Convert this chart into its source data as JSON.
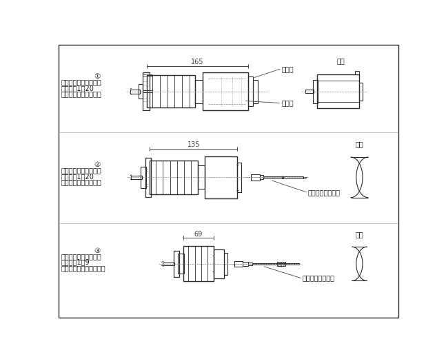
{
  "bg_color": "#ffffff",
  "line_color": "#2a2a2a",
  "dim_color": "#444444",
  "text_color": "#1a1a1a",
  "dash_color": "#888888",
  "border_color": "#2a2a2a",
  "font_size_label": 7.0,
  "font_size_tag": 7.0,
  "font_size_dim": 7.0,
  "section1": {
    "num": "①",
    "label1": "马达安装方式：适配器",
    "label2": "减速比：1／20",
    "label3": "输出方式：轴输出类型",
    "dim": "165",
    "tag_adapter": "适配器",
    "tag_coupling": "连接轴",
    "tag_motor": "马达"
  },
  "section2": {
    "num": "②",
    "label1": "马达安装方式：连接轴",
    "label2": "减速比：1／20",
    "label3": "输出方式：轴输出类型",
    "dim": "135",
    "tag_shaft": "齿轮一体式马达轴",
    "tag_motor": "马达"
  },
  "section3": {
    "num": "③",
    "label1": "马达安装方式：连接轴",
    "label2": "减速比：1／9",
    "label3": "输出方式：壳体输出类型",
    "dim": "69",
    "tag_shaft": "齿轮一体式马达轴",
    "tag_motor": "马达"
  }
}
